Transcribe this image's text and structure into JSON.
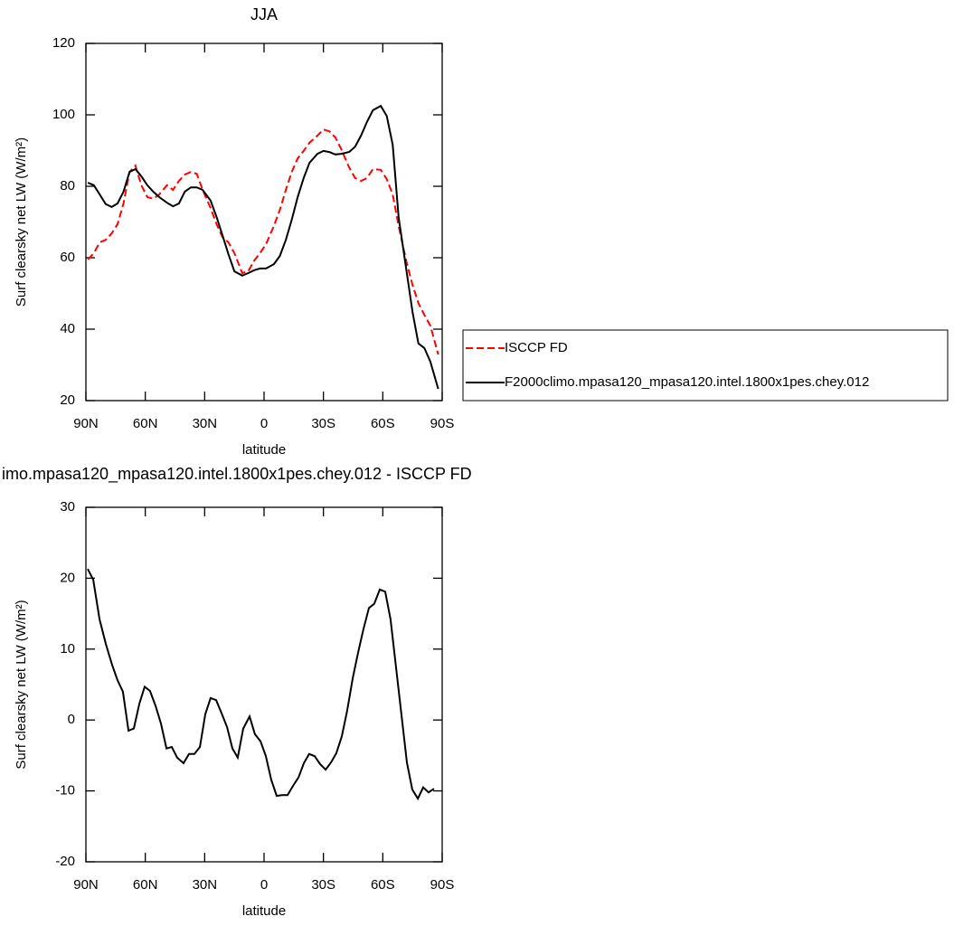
{
  "chart_data": [
    {
      "type": "line",
      "title": "JJA",
      "xlabel": "latitude",
      "ylabel": "Surf clearsky net LW (W/m²)",
      "x": [
        89,
        86,
        83,
        80,
        77,
        74,
        71,
        68,
        65,
        62,
        59,
        56,
        53,
        49,
        46,
        43,
        40,
        37,
        34,
        31,
        27,
        24,
        21,
        18,
        15,
        11,
        8,
        5,
        2,
        -1,
        -5,
        -8,
        -11,
        -14,
        -17,
        -20,
        -23,
        -27,
        -30,
        -33,
        -36,
        -39,
        -43,
        -46,
        -49,
        -52,
        -55,
        -59,
        -62,
        -65,
        -68,
        -72,
        -75,
        -78,
        -81,
        -84,
        -88
      ],
      "series": [
        {
          "name": "ISCCP FD",
          "color": "#ff0000",
          "style": "dashed",
          "values": [
            59.5,
            61.3,
            64.3,
            65,
            66.8,
            69.4,
            75.2,
            84,
            85.8,
            80.3,
            77,
            76.5,
            77.7,
            80.3,
            79,
            81.5,
            83.3,
            84,
            83.5,
            79,
            73.9,
            69.4,
            65.8,
            64.3,
            61.3,
            55.7,
            56.2,
            59.2,
            61.3,
            63.8,
            68.9,
            73.4,
            79,
            84,
            87.8,
            89.9,
            92.2,
            94.2,
            95.9,
            95.4,
            93.7,
            90.4,
            85.3,
            82.3,
            81.5,
            82.3,
            84.8,
            84.6,
            82,
            77.7,
            68.9,
            58.7,
            52.4,
            47.3,
            44,
            41,
            32.9
          ]
        },
        {
          "name": "F2000climo.mpasa120_mpasa120.intel.1800x1pes.chey.012",
          "color": "#000000",
          "style": "solid",
          "values": [
            81,
            80.3,
            77.7,
            75,
            74.2,
            75.2,
            78.5,
            84,
            84.8,
            82.8,
            80.3,
            78.5,
            77,
            75.4,
            74.4,
            75.2,
            78.5,
            79.7,
            79.7,
            79,
            76,
            71.4,
            66.3,
            61,
            56.2,
            55,
            55.7,
            56.5,
            57,
            57,
            58.2,
            60.5,
            65,
            70.6,
            77,
            82.3,
            86.6,
            89.1,
            89.9,
            89.6,
            88.9,
            89.1,
            89.6,
            91.1,
            94.2,
            98,
            101.3,
            102.5,
            99.7,
            91.6,
            71.4,
            56.2,
            44.8,
            36,
            34.7,
            30.9,
            23.3
          ]
        }
      ],
      "xlim": [
        90,
        -90
      ],
      "xticks": [
        {
          "value": 90,
          "label": "90N"
        },
        {
          "value": 60,
          "label": "60N"
        },
        {
          "value": 30,
          "label": "30N"
        },
        0,
        {
          "value": -30,
          "label": "30S"
        },
        {
          "value": -60,
          "label": "60S"
        },
        {
          "value": -90,
          "label": "90S"
        }
      ],
      "ylim": [
        20,
        120
      ],
      "yticks": [
        20,
        40,
        60,
        80,
        100,
        120
      ],
      "legend": "right"
    },
    {
      "type": "line",
      "title": "imo.mpasa120_mpasa120.intel.1800x1pes.chey.012 - ISCCP FD",
      "xlabel": "latitude",
      "ylabel": "Surf clearsky net LW (W/m²)",
      "x": [
        89.1,
        86.3,
        83.1,
        79.9,
        76.8,
        74,
        71.3,
        68.5,
        65.8,
        63,
        60.3,
        57.6,
        54.8,
        52.1,
        49.3,
        46.6,
        43.9,
        40.7,
        37.9,
        35.2,
        32.4,
        29.7,
        27,
        24.2,
        21.5,
        18.7,
        16,
        13.3,
        10.5,
        7.3,
        4.6,
        1.8,
        -0.9,
        -3.6,
        -6.4,
        -9.1,
        -11.9,
        -14.6,
        -17.4,
        -20.1,
        -22.8,
        -25.6,
        -28.3,
        -31.1,
        -33.8,
        -36.5,
        -39.3,
        -42,
        -44.8,
        -47.5,
        -50.2,
        -53,
        -55.7,
        -58.5,
        -61.2,
        -63.9,
        -66.7,
        -69.4,
        -72.2,
        -74.9,
        -77.7,
        -80.4,
        -83.1,
        -85.9
      ],
      "values": [
        21.3,
        19.8,
        14.2,
        10.7,
        7.8,
        5.6,
        4,
        -1.5,
        -1.2,
        2.3,
        4.7,
        4.1,
        2,
        -0.5,
        -4,
        -3.8,
        -5.3,
        -6.1,
        -4.8,
        -4.8,
        -3.8,
        0.8,
        3.1,
        2.8,
        1,
        -1,
        -4,
        -5.3,
        -1.2,
        0.5,
        -2,
        -3,
        -5.1,
        -8.4,
        -10.7,
        -10.6,
        -10.6,
        -9.3,
        -8.1,
        -6.1,
        -4.8,
        -5.1,
        -6.2,
        -7,
        -6,
        -4.7,
        -2.3,
        1.3,
        5.9,
        9.5,
        12.8,
        15.8,
        16.4,
        18.4,
        18.1,
        14.2,
        7.4,
        0.8,
        -6,
        -9.8,
        -11.1,
        -9.5,
        -10.2,
        -9.7
      ],
      "color": "#000000",
      "xlim": [
        90,
        -90
      ],
      "xticks": [
        {
          "value": 90,
          "label": "90N"
        },
        {
          "value": 60,
          "label": "60N"
        },
        {
          "value": 30,
          "label": "30N"
        },
        0,
        {
          "value": -30,
          "label": "30S"
        },
        {
          "value": -60,
          "label": "60S"
        },
        {
          "value": -90,
          "label": "90S"
        }
      ],
      "ylim": [
        -20,
        30
      ],
      "yticks": [
        -20,
        -10,
        0,
        10,
        20,
        30
      ]
    }
  ]
}
